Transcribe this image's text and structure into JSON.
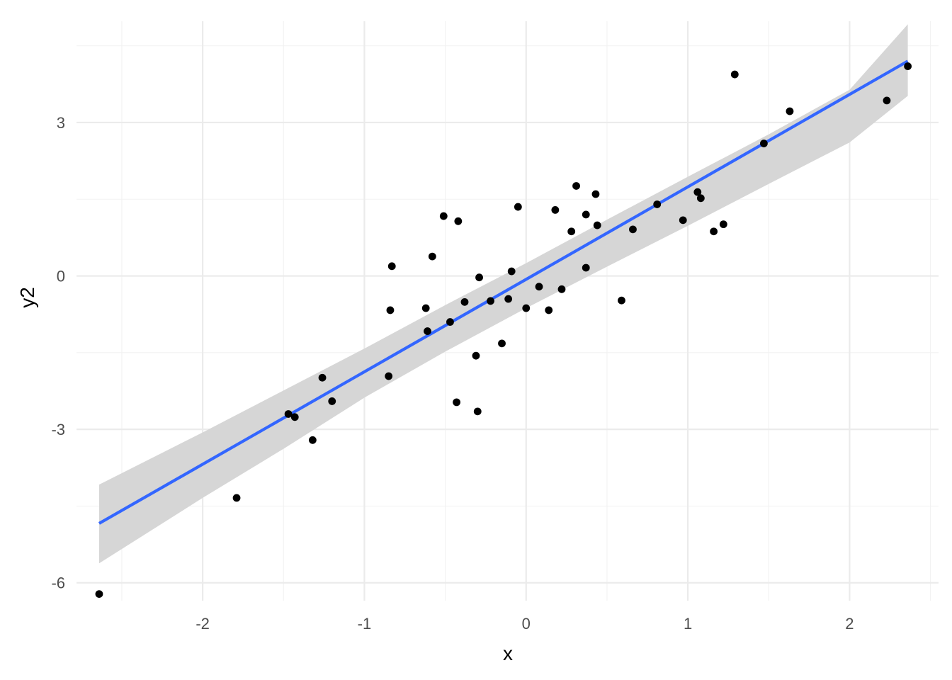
{
  "chart_data": {
    "type": "scatter",
    "xlabel": "x",
    "ylabel": "y2",
    "xlim": [
      -2.78,
      2.55
    ],
    "ylim": [
      -6.35,
      4.98
    ],
    "x_ticks": [
      -2,
      -1,
      0,
      1,
      2
    ],
    "x_tick_labels": [
      "-2",
      "-1",
      "0",
      "1",
      "2"
    ],
    "y_ticks": [
      -6,
      -3,
      0,
      3
    ],
    "y_tick_labels": [
      "-6",
      "-3",
      "0",
      "3"
    ],
    "x_minor_ticks": [
      -2.5,
      -1.5,
      -0.5,
      0.5,
      1.5,
      2.5
    ],
    "y_minor_ticks": [
      -4.5,
      -1.5,
      1.5,
      4.5
    ],
    "grid": true,
    "legend": "none",
    "point_color": "#000000",
    "line_color": "#3366ff",
    "band_color": "#d6d6d6",
    "points": [
      {
        "x": -2.64,
        "y": -6.22
      },
      {
        "x": -1.79,
        "y": -4.34
      },
      {
        "x": -1.47,
        "y": -2.7
      },
      {
        "x": -1.43,
        "y": -2.76
      },
      {
        "x": -1.32,
        "y": -3.21
      },
      {
        "x": -1.26,
        "y": -1.99
      },
      {
        "x": -1.2,
        "y": -2.45
      },
      {
        "x": -0.85,
        "y": -1.96
      },
      {
        "x": -0.84,
        "y": -0.67
      },
      {
        "x": -0.83,
        "y": 0.19
      },
      {
        "x": -0.62,
        "y": -0.63
      },
      {
        "x": -0.61,
        "y": -1.08
      },
      {
        "x": -0.58,
        "y": 0.38
      },
      {
        "x": -0.51,
        "y": 1.17
      },
      {
        "x": -0.47,
        "y": -0.9
      },
      {
        "x": -0.43,
        "y": -2.47
      },
      {
        "x": -0.42,
        "y": 1.07
      },
      {
        "x": -0.38,
        "y": -0.51
      },
      {
        "x": -0.31,
        "y": -1.56
      },
      {
        "x": -0.3,
        "y": -2.65
      },
      {
        "x": -0.29,
        "y": -0.03
      },
      {
        "x": -0.22,
        "y": -0.49
      },
      {
        "x": -0.15,
        "y": -1.32
      },
      {
        "x": -0.11,
        "y": -0.45
      },
      {
        "x": -0.09,
        "y": 0.09
      },
      {
        "x": -0.05,
        "y": 1.35
      },
      {
        "x": 0.0,
        "y": -0.63
      },
      {
        "x": 0.08,
        "y": -0.21
      },
      {
        "x": 0.14,
        "y": -0.67
      },
      {
        "x": 0.18,
        "y": 1.29
      },
      {
        "x": 0.22,
        "y": -0.26
      },
      {
        "x": 0.28,
        "y": 0.87
      },
      {
        "x": 0.31,
        "y": 1.76
      },
      {
        "x": 0.37,
        "y": 0.16
      },
      {
        "x": 0.37,
        "y": 1.2
      },
      {
        "x": 0.43,
        "y": 1.6
      },
      {
        "x": 0.44,
        "y": 0.99
      },
      {
        "x": 0.59,
        "y": -0.48
      },
      {
        "x": 0.66,
        "y": 0.91
      },
      {
        "x": 0.81,
        "y": 1.4
      },
      {
        "x": 0.97,
        "y": 1.09
      },
      {
        "x": 1.06,
        "y": 1.64
      },
      {
        "x": 1.08,
        "y": 1.52
      },
      {
        "x": 1.16,
        "y": 0.87
      },
      {
        "x": 1.22,
        "y": 1.01
      },
      {
        "x": 1.29,
        "y": 3.94
      },
      {
        "x": 1.47,
        "y": 2.59
      },
      {
        "x": 1.63,
        "y": 3.22
      },
      {
        "x": 2.23,
        "y": 3.43
      },
      {
        "x": 2.36,
        "y": 4.1
      }
    ],
    "fit_line": {
      "x": [
        -2.64,
        2.36
      ],
      "y": [
        -4.84,
        4.2
      ]
    },
    "confidence_band": {
      "x": [
        -2.64,
        -2.0,
        -1.5,
        -1.0,
        -0.5,
        0.0,
        0.5,
        1.0,
        1.5,
        2.0,
        2.36
      ],
      "upper": [
        -4.08,
        -3.06,
        -2.24,
        -1.42,
        -0.57,
        0.25,
        1.1,
        1.94,
        2.77,
        3.64,
        4.92
      ],
      "lower": [
        -5.62,
        -4.34,
        -3.38,
        -2.38,
        -1.48,
        -0.63,
        0.18,
        0.98,
        1.8,
        2.61,
        3.52
      ]
    }
  }
}
